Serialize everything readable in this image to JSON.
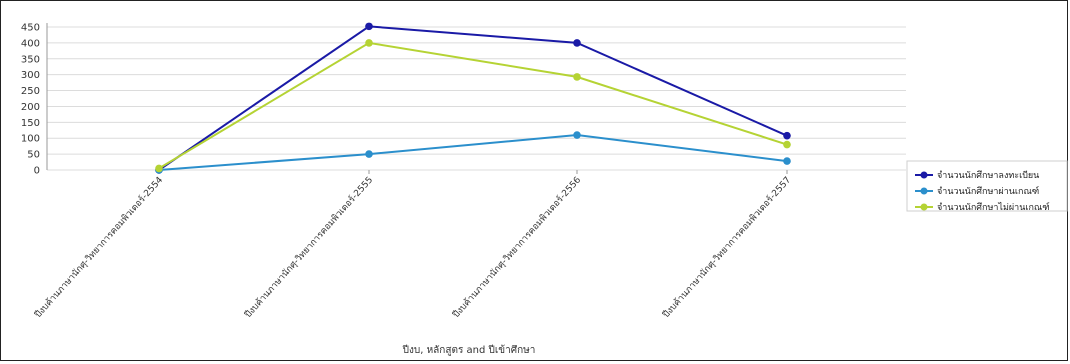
{
  "chart_data": {
    "type": "line",
    "title": "",
    "xlabel": "ปีงบ, หลักสูตร and ปีเข้าศึกษา",
    "ylabel": "",
    "ylim": [
      0,
      450
    ],
    "yticks": [
      0,
      50,
      100,
      150,
      200,
      250,
      300,
      350,
      400,
      450
    ],
    "grid": true,
    "legend_position": "right",
    "categories": [
      "ปีงบค้านภาษานักศุ-วิทยาการคอมพิวเตอร์-2554",
      "ปีงบค้านภาษานักศุ-วิทยาการคอมพิวเตอร์-2555",
      "ปีงบค้านภาษานักศุ-วิทยาการคอมพิวเตอร์-2556",
      "ปีงบค้านภาษานักศุ-วิทยาการคอมพิวเตอร์-2557"
    ],
    "series": [
      {
        "name": "จำนวนนักศึกษาลงทะเบียน",
        "color": "#1a1aa6",
        "values": [
          0,
          452,
          400,
          108
        ]
      },
      {
        "name": "จำนวนนักศึกษาผ่านเกณฑ์",
        "color": "#2b8fcc",
        "values": [
          0,
          50,
          110,
          28
        ]
      },
      {
        "name": "จำนวนนักศึกษาไม่ผ่านเกณฑ์",
        "color": "#b5d334",
        "values": [
          5,
          400,
          293,
          80
        ]
      }
    ]
  }
}
